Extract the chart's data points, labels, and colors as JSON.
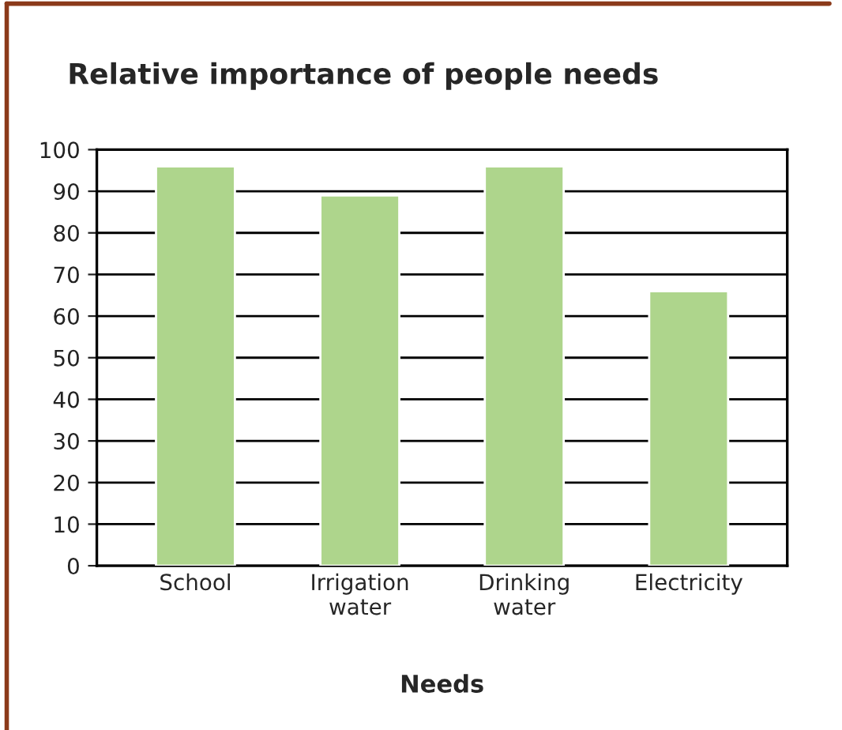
{
  "chart_data": {
    "type": "bar",
    "title": "Relative importance of people needs",
    "xlabel": "Needs",
    "categories": [
      "School",
      "Irrigation\nwater",
      "Drinking\nwater",
      "Electricity"
    ],
    "values": [
      96,
      89,
      96,
      66
    ],
    "color": "#aed58c",
    "ylim": [
      0,
      100
    ],
    "yticks": [
      0,
      10,
      20,
      30,
      40,
      50,
      60,
      70,
      80,
      90,
      100
    ],
    "grid": "y"
  }
}
